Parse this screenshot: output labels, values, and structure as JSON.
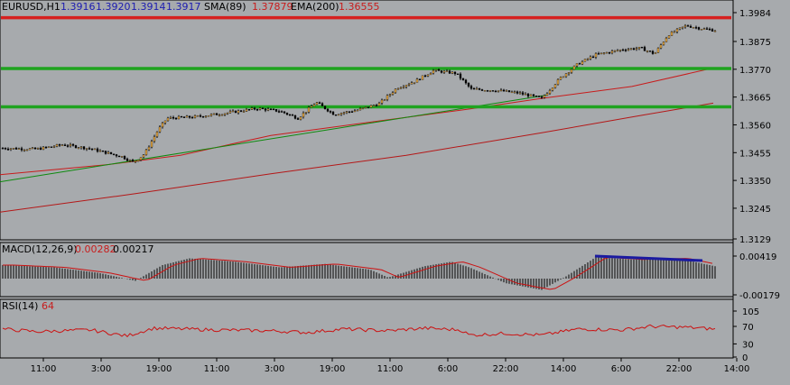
{
  "main": {
    "symbol": "EURUSD,H1",
    "ohlc": [
      "1.3916",
      "1.3920",
      "1.3914",
      "1.3917"
    ],
    "sma_label": "SMA(89)",
    "sma_value": "1.37879",
    "ema_label": "EMA(200)",
    "ema_value": "1.36555",
    "price_ticks": [
      "1.3984",
      "1.3875",
      "1.3770",
      "1.3665",
      "1.3560",
      "1.3455",
      "1.3350",
      "1.3245",
      "1.3129"
    ],
    "horizontal_levels": [
      {
        "price": 1.3965,
        "color": "#d62020"
      },
      {
        "price": 1.3773,
        "color": "#1fa31f"
      },
      {
        "price": 1.3628,
        "color": "#1fa31f"
      }
    ]
  },
  "macd": {
    "label": "MACD(12,26,9)",
    "value1": "0.00282",
    "value2": "0.00217",
    "ticks": [
      "0.00419",
      "-0.00179"
    ]
  },
  "rsi": {
    "label": "RSI(14)",
    "value": "64",
    "ticks": [
      "105",
      "70",
      "30",
      "0"
    ]
  },
  "time_ticks": [
    "11:00",
    "3:00",
    "19:00",
    "11:00",
    "3:00",
    "19:00",
    "11:00",
    "6:00",
    "22:00",
    "14:00",
    "6:00",
    "22:00",
    "14:00"
  ],
  "colors": {
    "background": "#a7aaad",
    "bull_candle": "#e2a541",
    "bear_candle": "#000000",
    "sma": "#c81c1c",
    "ema": "#b41818",
    "trendline": "#0e8a0e",
    "macd_signal": "#cc1111",
    "macd_divergence": "#1a1aa0",
    "rsi_line": "#cc1111"
  }
}
